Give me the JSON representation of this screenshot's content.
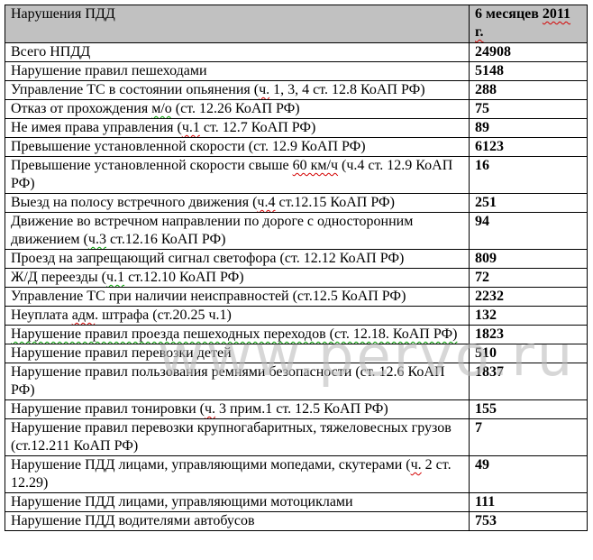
{
  "watermark_text": "www.pervo.ru",
  "colors": {
    "header_bg": "#c1c1c1",
    "border": "#000000",
    "spellcheck_red": "#d40000",
    "spellcheck_green": "#00a000",
    "watermark_gray": "#bdbdbd"
  },
  "table": {
    "header": {
      "col1": "Нарушения ПДД",
      "col2": "6 месяцев 2011 г.",
      "col2_marks": [
        {
          "t": "2011 г.",
          "c": "red"
        }
      ]
    },
    "rows": [
      {
        "label": "Всего НПДД",
        "value": "24908",
        "marks": []
      },
      {
        "label": "Нарушение правил пешеходами",
        "value": "5148",
        "marks": []
      },
      {
        "label": "Управление ТС в состоянии опьянения (ч. 1, 3, 4 ст. 12.8 КоАП РФ)",
        "value": "288",
        "marks": [
          {
            "t": "ч.",
            "c": "red"
          }
        ]
      },
      {
        "label": "Отказ от прохождения м/о (ст. 12.26 КоАП РФ)",
        "value": "75",
        "marks": [
          {
            "t": "м/о",
            "c": "green"
          }
        ]
      },
      {
        "label": "Не имея права управления (ч.1 ст. 12.7 КоАП РФ)",
        "value": "89",
        "marks": [
          {
            "t": "ч.1",
            "c": "red"
          }
        ]
      },
      {
        "label": "Превышение установленной скорости (ст. 12.9 КоАП РФ)",
        "value": "6123",
        "marks": []
      },
      {
        "label": "Превышение установленной скорости свыше 60 км/ч (ч.4 ст. 12.9 КоАП РФ)",
        "value": "16",
        "marks": [
          {
            "t": "60 км/ч",
            "c": "red"
          }
        ]
      },
      {
        "label": "Выезд на полосу встречного движения (ч.4 ст.12.15 КоАП РФ)",
        "value": "251",
        "marks": [
          {
            "t": "ч.4",
            "c": "red"
          }
        ]
      },
      {
        "label": "Движение во встречном направлении по дороге с односторонним движением (ч.3 ст.12.16 КоАП РФ)",
        "value": "94",
        "marks": [
          {
            "t": "ч.3",
            "c": "green"
          }
        ]
      },
      {
        "label": "Проезд на запрещающий сигнал светофора (ст. 12.12 КоАП РФ)",
        "value": "809",
        "marks": []
      },
      {
        "label": "Ж/Д переезды (ч.1 ст.12.10 КоАП РФ)",
        "value": "72",
        "marks": [
          {
            "t": "ч.1",
            "c": "green"
          }
        ]
      },
      {
        "label": "Управление ТС при наличии неисправностей (ст.12.5 КоАП РФ)",
        "value": "2232",
        "marks": []
      },
      {
        "label": "Неуплата адм. штрафа (ст.20.25 ч.1)",
        "value": "132",
        "marks": [
          {
            "t": "адм",
            "c": "red"
          }
        ]
      },
      {
        "label": "Нарушение правил проезда пешеходных переходов (ст. 12.18. КоАП РФ)",
        "value": "1823",
        "marks": [
          {
            "t": "Нарушение правил проезда пешеходных переходов (ст. 12.18. КоАП РФ)",
            "c": "green"
          }
        ]
      },
      {
        "label": "Нарушение правил перевозки детей",
        "value": "510",
        "marks": []
      },
      {
        "label": "Нарушение правил пользования ремнями безопасности (ст. 12.6 КоАП РФ)",
        "value": "1837",
        "marks": []
      },
      {
        "label": "Нарушение правил тонировки (ч. 3 прим.1 ст. 12.5 КоАП РФ)",
        "value": "155",
        "marks": [
          {
            "t": "ч.",
            "c": "red"
          }
        ]
      },
      {
        "label": "Нарушение правил перевозки крупногабаритных, тяжеловесных грузов (ст.12.211 КоАП РФ)",
        "value": "7",
        "marks": []
      },
      {
        "label": "Нарушение ПДД лицами, управляющими мопедами, скутерами (ч. 2 ст. 12.29)",
        "value": "49",
        "marks": [
          {
            "t": "ч.",
            "c": "red"
          }
        ]
      },
      {
        "label": "Нарушение ПДД лицами, управляющими мотоциклами",
        "value": "111",
        "marks": []
      },
      {
        "label": "Нарушение ПДД водителями автобусов",
        "value": "753",
        "marks": []
      }
    ]
  }
}
